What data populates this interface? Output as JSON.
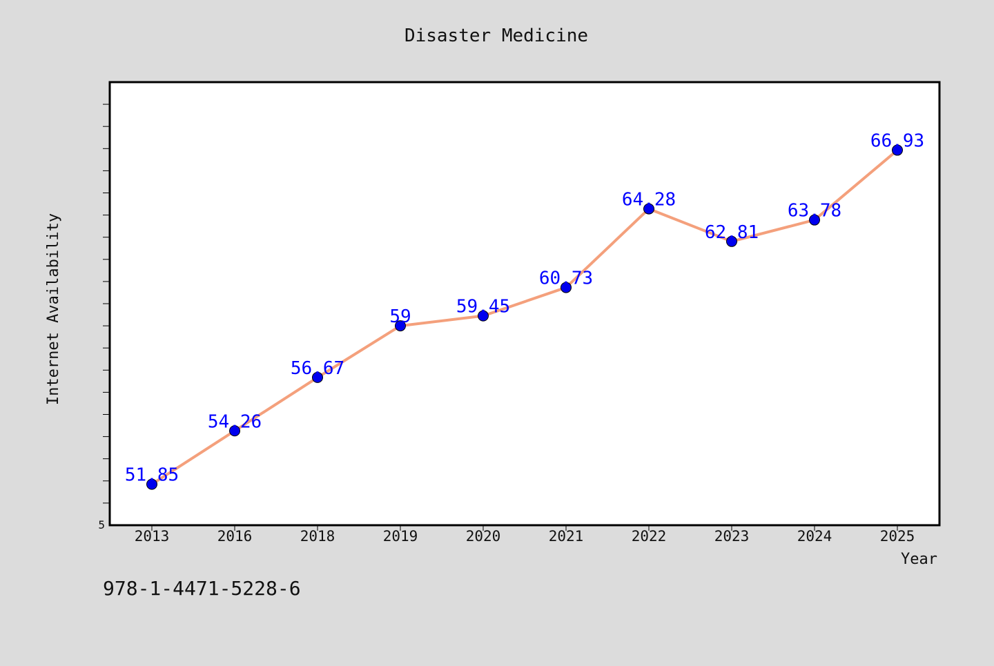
{
  "colors": {
    "background": "#dcdcdc",
    "plot_background": "#ffffff",
    "line": "#f4a07c",
    "marker": "#0000ee",
    "label": "#0000ff",
    "text": "#111111"
  },
  "chart_data": {
    "type": "line",
    "title": "Disaster Medicine",
    "xlabel": "Year",
    "ylabel": "Internet Availability",
    "categories": [
      "2013",
      "2016",
      "2018",
      "2019",
      "2020",
      "2021",
      "2022",
      "2023",
      "2024",
      "2025"
    ],
    "series": [
      {
        "values": [
          51.85,
          54.26,
          56.67,
          59,
          59.45,
          60.73,
          64.28,
          62.81,
          63.78,
          66.93
        ]
      }
    ],
    "data_labels": [
      "51.85",
      "54.26",
      "56.67",
      "59",
      "59.45",
      "60.73",
      "64.28",
      "62.81",
      "63.78",
      "66.93"
    ],
    "ylim": [
      50,
      70
    ],
    "y_tick_label": "5",
    "grid": false
  },
  "footer_text": "978-1-4471-5228-6"
}
